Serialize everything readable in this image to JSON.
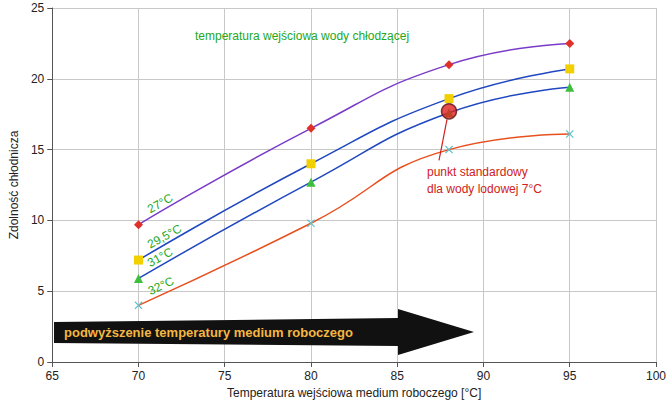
{
  "chart_data": {
    "type": "line",
    "x_label": "Temperatura wejściowa medium roboczego [°C]",
    "y_label": "Zdolność chłodnicza",
    "x": [
      70,
      80,
      88,
      95
    ],
    "series": [
      {
        "name": "27°C",
        "color": "#7a3cc8",
        "marker": "diamond",
        "line_style": "solid",
        "colors": [
          "#e0302a",
          "#e0302a",
          "#e0302a",
          "#e0302a"
        ],
        "values": [
          9.7,
          16.5,
          21,
          22.5
        ]
      },
      {
        "name": "29,5°C",
        "color": "#2048c0",
        "marker": "square",
        "line_style": "solid",
        "colors": [
          "#f2d000",
          "#f2d000",
          "#f2d000",
          "#f2d000"
        ],
        "values": [
          7.2,
          14,
          18.6,
          20.7
        ]
      },
      {
        "name": "31°C",
        "color": "#2048c0",
        "marker": "triangle",
        "line_style": "solid",
        "colors": [
          "#3cc03c",
          "#3cc03c",
          "#3cc03c",
          "#3cc03c"
        ],
        "values": [
          5.9,
          12.7,
          17.6,
          19.4
        ]
      },
      {
        "name": "32°C",
        "color": "#e8501e",
        "marker": "x",
        "line_style": "solid",
        "colors": [
          "#5cc0c8",
          "#5cc0c8",
          "#5cc0c8",
          "#5cc0c8"
        ],
        "values": [
          4,
          9.8,
          15,
          16.1
        ]
      }
    ],
    "standard_point": {
      "x": 88,
      "y": 17.7,
      "label": [
        "punkt standardowy",
        "dla wody lodowej 7°C"
      ]
    },
    "annotations": [
      "temperatura wejściowa wody chłodzącej",
      "podwyższenie temperatury medium roboczego"
    ],
    "xlim": [
      65,
      100
    ],
    "xticks": [
      65,
      70,
      75,
      80,
      85,
      90,
      95,
      100
    ],
    "ylim": [
      0,
      25
    ],
    "yticks": [
      0,
      5,
      10,
      15,
      20,
      25
    ],
    "grid": true
  }
}
